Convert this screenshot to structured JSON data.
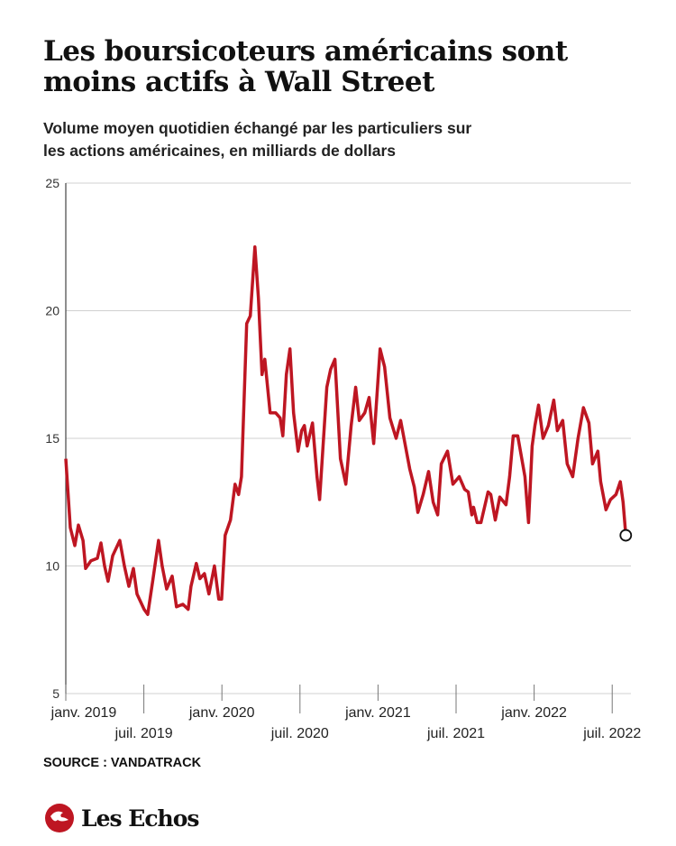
{
  "chart_data": {
    "type": "line",
    "title": "Les boursicoteurs américains sont moins actifs à Wall Street",
    "subtitle": "Volume moyen quotidien échangé par les particuliers sur les actions américaines, en milliards de dollars",
    "source": "SOURCE : VANDATRACK",
    "brand": "Les Echos",
    "color": "#be1622",
    "grid": true,
    "ylim": [
      5,
      25
    ],
    "yticks": [
      5,
      10,
      15,
      20,
      25
    ],
    "xlim": [
      2019,
      2022.62
    ],
    "xticks": [
      {
        "value": 2019,
        "label": "janv. 2019"
      },
      {
        "value": 2019.5,
        "label": "juil. 2019"
      },
      {
        "value": 2020,
        "label": "janv. 2020"
      },
      {
        "value": 2020.5,
        "label": "juil. 2020"
      },
      {
        "value": 2021,
        "label": "janv. 2021"
      },
      {
        "value": 2021.5,
        "label": "juil. 2021"
      },
      {
        "value": 2022,
        "label": "janv. 2022"
      },
      {
        "value": 2022.5,
        "label": "juil. 2022"
      }
    ],
    "x": [
      2019.0,
      2019.029,
      2019.058,
      2019.081,
      2019.11,
      2019.127,
      2019.161,
      2019.202,
      2019.225,
      2019.248,
      2019.271,
      2019.3,
      2019.346,
      2019.375,
      2019.404,
      2019.433,
      2019.456,
      2019.502,
      2019.525,
      2019.559,
      2019.594,
      2019.617,
      2019.646,
      2019.681,
      2019.709,
      2019.75,
      2019.784,
      2019.802,
      2019.836,
      2019.859,
      2019.888,
      2019.917,
      2019.952,
      2019.98,
      2019.998,
      2020.021,
      2020.055,
      2020.084,
      2020.107,
      2020.125,
      2020.159,
      2020.182,
      2020.211,
      2020.234,
      2020.257,
      2020.275,
      2020.309,
      2020.344,
      2020.373,
      2020.39,
      2020.413,
      2020.436,
      2020.459,
      2020.488,
      2020.511,
      2020.528,
      2020.546,
      2020.58,
      2020.609,
      2020.626,
      2020.672,
      2020.696,
      2020.724,
      2020.759,
      2020.794,
      2020.828,
      2020.857,
      2020.88,
      2020.915,
      2020.943,
      2020.972,
      2021.013,
      2021.042,
      2021.076,
      2021.116,
      2021.145,
      2021.203,
      2021.232,
      2021.255,
      2021.289,
      2021.324,
      2021.353,
      2021.382,
      2021.405,
      2021.445,
      2021.48,
      2021.52,
      2021.555,
      2021.578,
      2021.601,
      2021.612,
      2021.635,
      2021.659,
      2021.705,
      2021.722,
      2021.751,
      2021.78,
      2021.82,
      2021.843,
      2021.866,
      2021.895,
      2021.918,
      2021.941,
      2021.964,
      2021.987,
      2022.005,
      2022.028,
      2022.057,
      2022.091,
      2022.126,
      2022.149,
      2022.183,
      2022.212,
      2022.247,
      2022.281,
      2022.316,
      2022.351,
      2022.374,
      2022.408,
      2022.426,
      2022.46,
      2022.489,
      2022.524,
      2022.552,
      2022.57,
      2022.587
    ],
    "values": [
      14.2,
      11.5,
      10.8,
      11.6,
      11.0,
      9.9,
      10.2,
      10.3,
      10.9,
      10.0,
      9.4,
      10.4,
      11.0,
      10.0,
      9.2,
      9.9,
      8.9,
      8.3,
      8.1,
      9.5,
      11.0,
      10.0,
      9.1,
      9.6,
      8.4,
      8.5,
      8.3,
      9.2,
      10.1,
      9.5,
      9.7,
      8.9,
      10.0,
      8.7,
      8.7,
      11.2,
      11.8,
      13.2,
      12.8,
      13.5,
      19.5,
      19.8,
      22.5,
      20.5,
      17.5,
      18.1,
      16.0,
      16.0,
      15.8,
      15.1,
      17.5,
      18.5,
      16.0,
      14.5,
      15.3,
      15.5,
      14.7,
      15.6,
      13.5,
      12.6,
      17.0,
      17.7,
      18.1,
      14.2,
      13.2,
      15.5,
      17.0,
      15.7,
      16.0,
      16.6,
      14.8,
      18.5,
      17.8,
      15.8,
      15.0,
      15.7,
      13.8,
      13.1,
      12.1,
      12.8,
      13.7,
      12.5,
      12.0,
      14.0,
      14.5,
      13.2,
      13.5,
      13.0,
      12.9,
      12.0,
      12.3,
      11.7,
      11.7,
      12.9,
      12.8,
      11.8,
      12.7,
      12.4,
      13.5,
      15.1,
      15.1,
      14.3,
      13.5,
      11.7,
      14.7,
      15.5,
      16.3,
      15.0,
      15.5,
      16.5,
      15.3,
      15.7,
      14.0,
      13.5,
      15.0,
      16.2,
      15.6,
      14.0,
      14.5,
      13.3,
      12.2,
      12.6,
      12.8,
      13.3,
      12.5,
      11.2
    ]
  }
}
